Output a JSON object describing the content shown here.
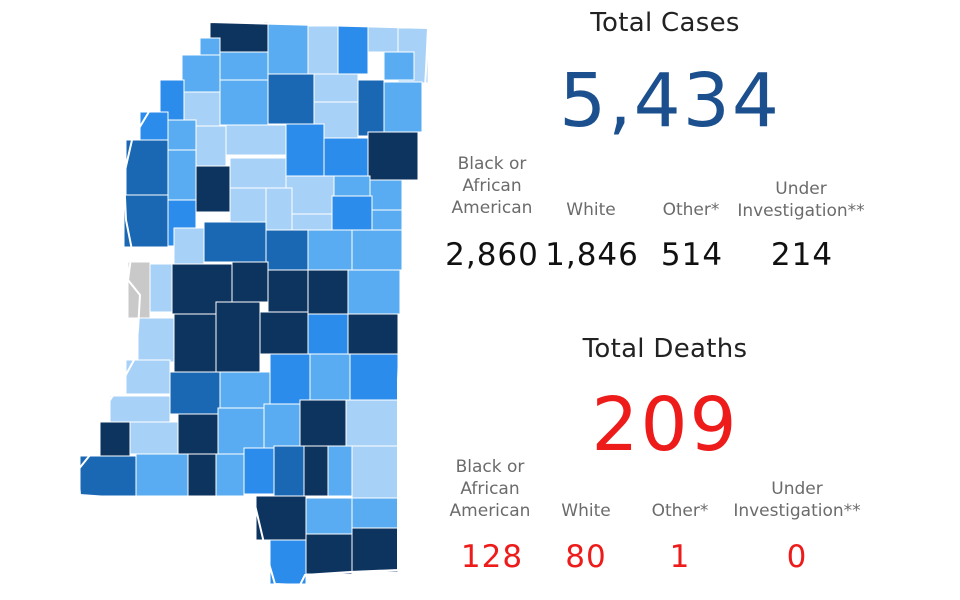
{
  "cases": {
    "title": "Total Cases",
    "total": "5,434",
    "total_color": "#1b4f8e",
    "breakdown": [
      {
        "label": "Black or African American",
        "value": "2,860"
      },
      {
        "label": "White",
        "value": "1,846"
      },
      {
        "label": "Other*",
        "value": "514"
      },
      {
        "label": "Under Investigation**",
        "value": "214"
      }
    ]
  },
  "deaths": {
    "title": "Total Deaths",
    "total": "209",
    "total_color": "#ee1b1b",
    "breakdown": [
      {
        "label": "Black or African American",
        "value": "128"
      },
      {
        "label": "White",
        "value": "80"
      },
      {
        "label": "Other*",
        "value": "1"
      },
      {
        "label": "Under Investigation**",
        "value": "0"
      }
    ]
  },
  "map_palette": {
    "darkest": "#0d335f",
    "dark": "#1a67b3",
    "medium": "#2b8ceb",
    "light": "#5aacf2",
    "lightest": "#a8d1f8",
    "no_data": "#c9c9c9"
  }
}
